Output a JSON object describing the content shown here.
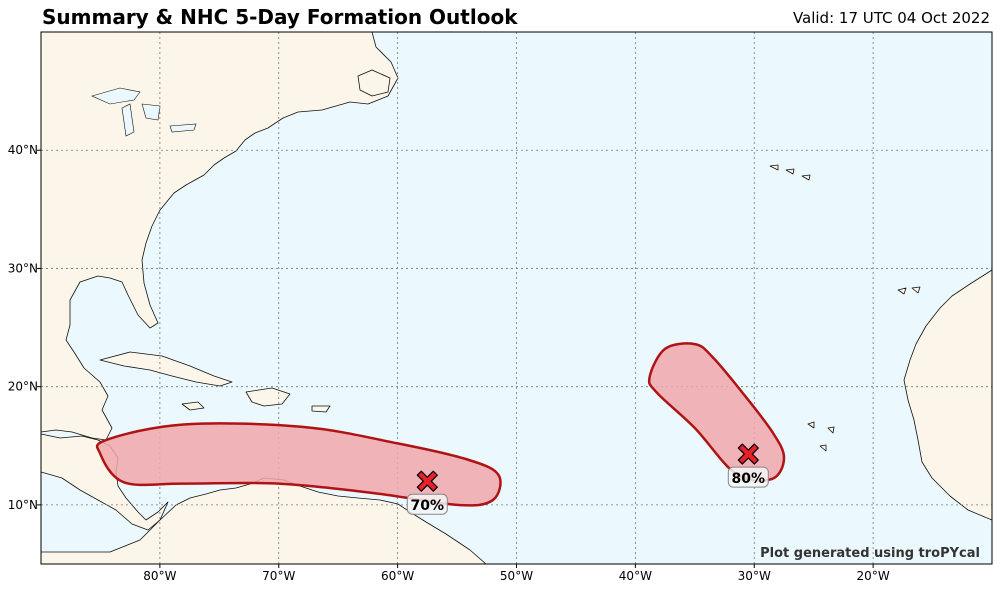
{
  "header": {
    "title": "Summary & NHC 5-Day Formation Outlook",
    "valid": "Valid: 17 UTC 04 Oct 2022"
  },
  "map": {
    "credit": "Plot generated using troPYcal",
    "lon_range": [
      -90,
      -10
    ],
    "lat_range": [
      5,
      50
    ],
    "lon_labels": [
      "80°W",
      "70°W",
      "60°W",
      "50°W",
      "40°W",
      "30°W",
      "20°W"
    ],
    "lat_labels": [
      "40°N",
      "30°N",
      "20°N",
      "10°N"
    ],
    "colors": {
      "ocean": "#ebf8fd",
      "land": "#fcf6ea",
      "area_fill": "#f1a7ab",
      "area_edge": "#b01313",
      "marker": "#e8202a"
    }
  },
  "outlooks": [
    {
      "probability": "70%",
      "center_lon": -57.5,
      "center_lat": 12.0,
      "area_polygon": [
        [
          -84.5,
          15.5
        ],
        [
          -78,
          16.8
        ],
        [
          -68,
          16.6
        ],
        [
          -60,
          15.2
        ],
        [
          -54,
          13.8
        ],
        [
          -51.5,
          12.5
        ],
        [
          -52,
          10.4
        ],
        [
          -55,
          10.0
        ],
        [
          -62,
          11.0
        ],
        [
          -70,
          11.8
        ],
        [
          -78,
          11.8
        ],
        [
          -83,
          11.9
        ],
        [
          -85,
          14.3
        ]
      ]
    },
    {
      "probability": "80%",
      "center_lon": -30.5,
      "center_lat": 14.3,
      "area_polygon": [
        [
          -38.8,
          20.8
        ],
        [
          -37.5,
          23.2
        ],
        [
          -35,
          23.6
        ],
        [
          -33.5,
          22.5
        ],
        [
          -31,
          19.5
        ],
        [
          -28.5,
          16.2
        ],
        [
          -27.5,
          14
        ],
        [
          -28.5,
          12.2
        ],
        [
          -31.5,
          12.6
        ],
        [
          -35,
          16.5
        ],
        [
          -38.2,
          19.5
        ]
      ]
    }
  ]
}
